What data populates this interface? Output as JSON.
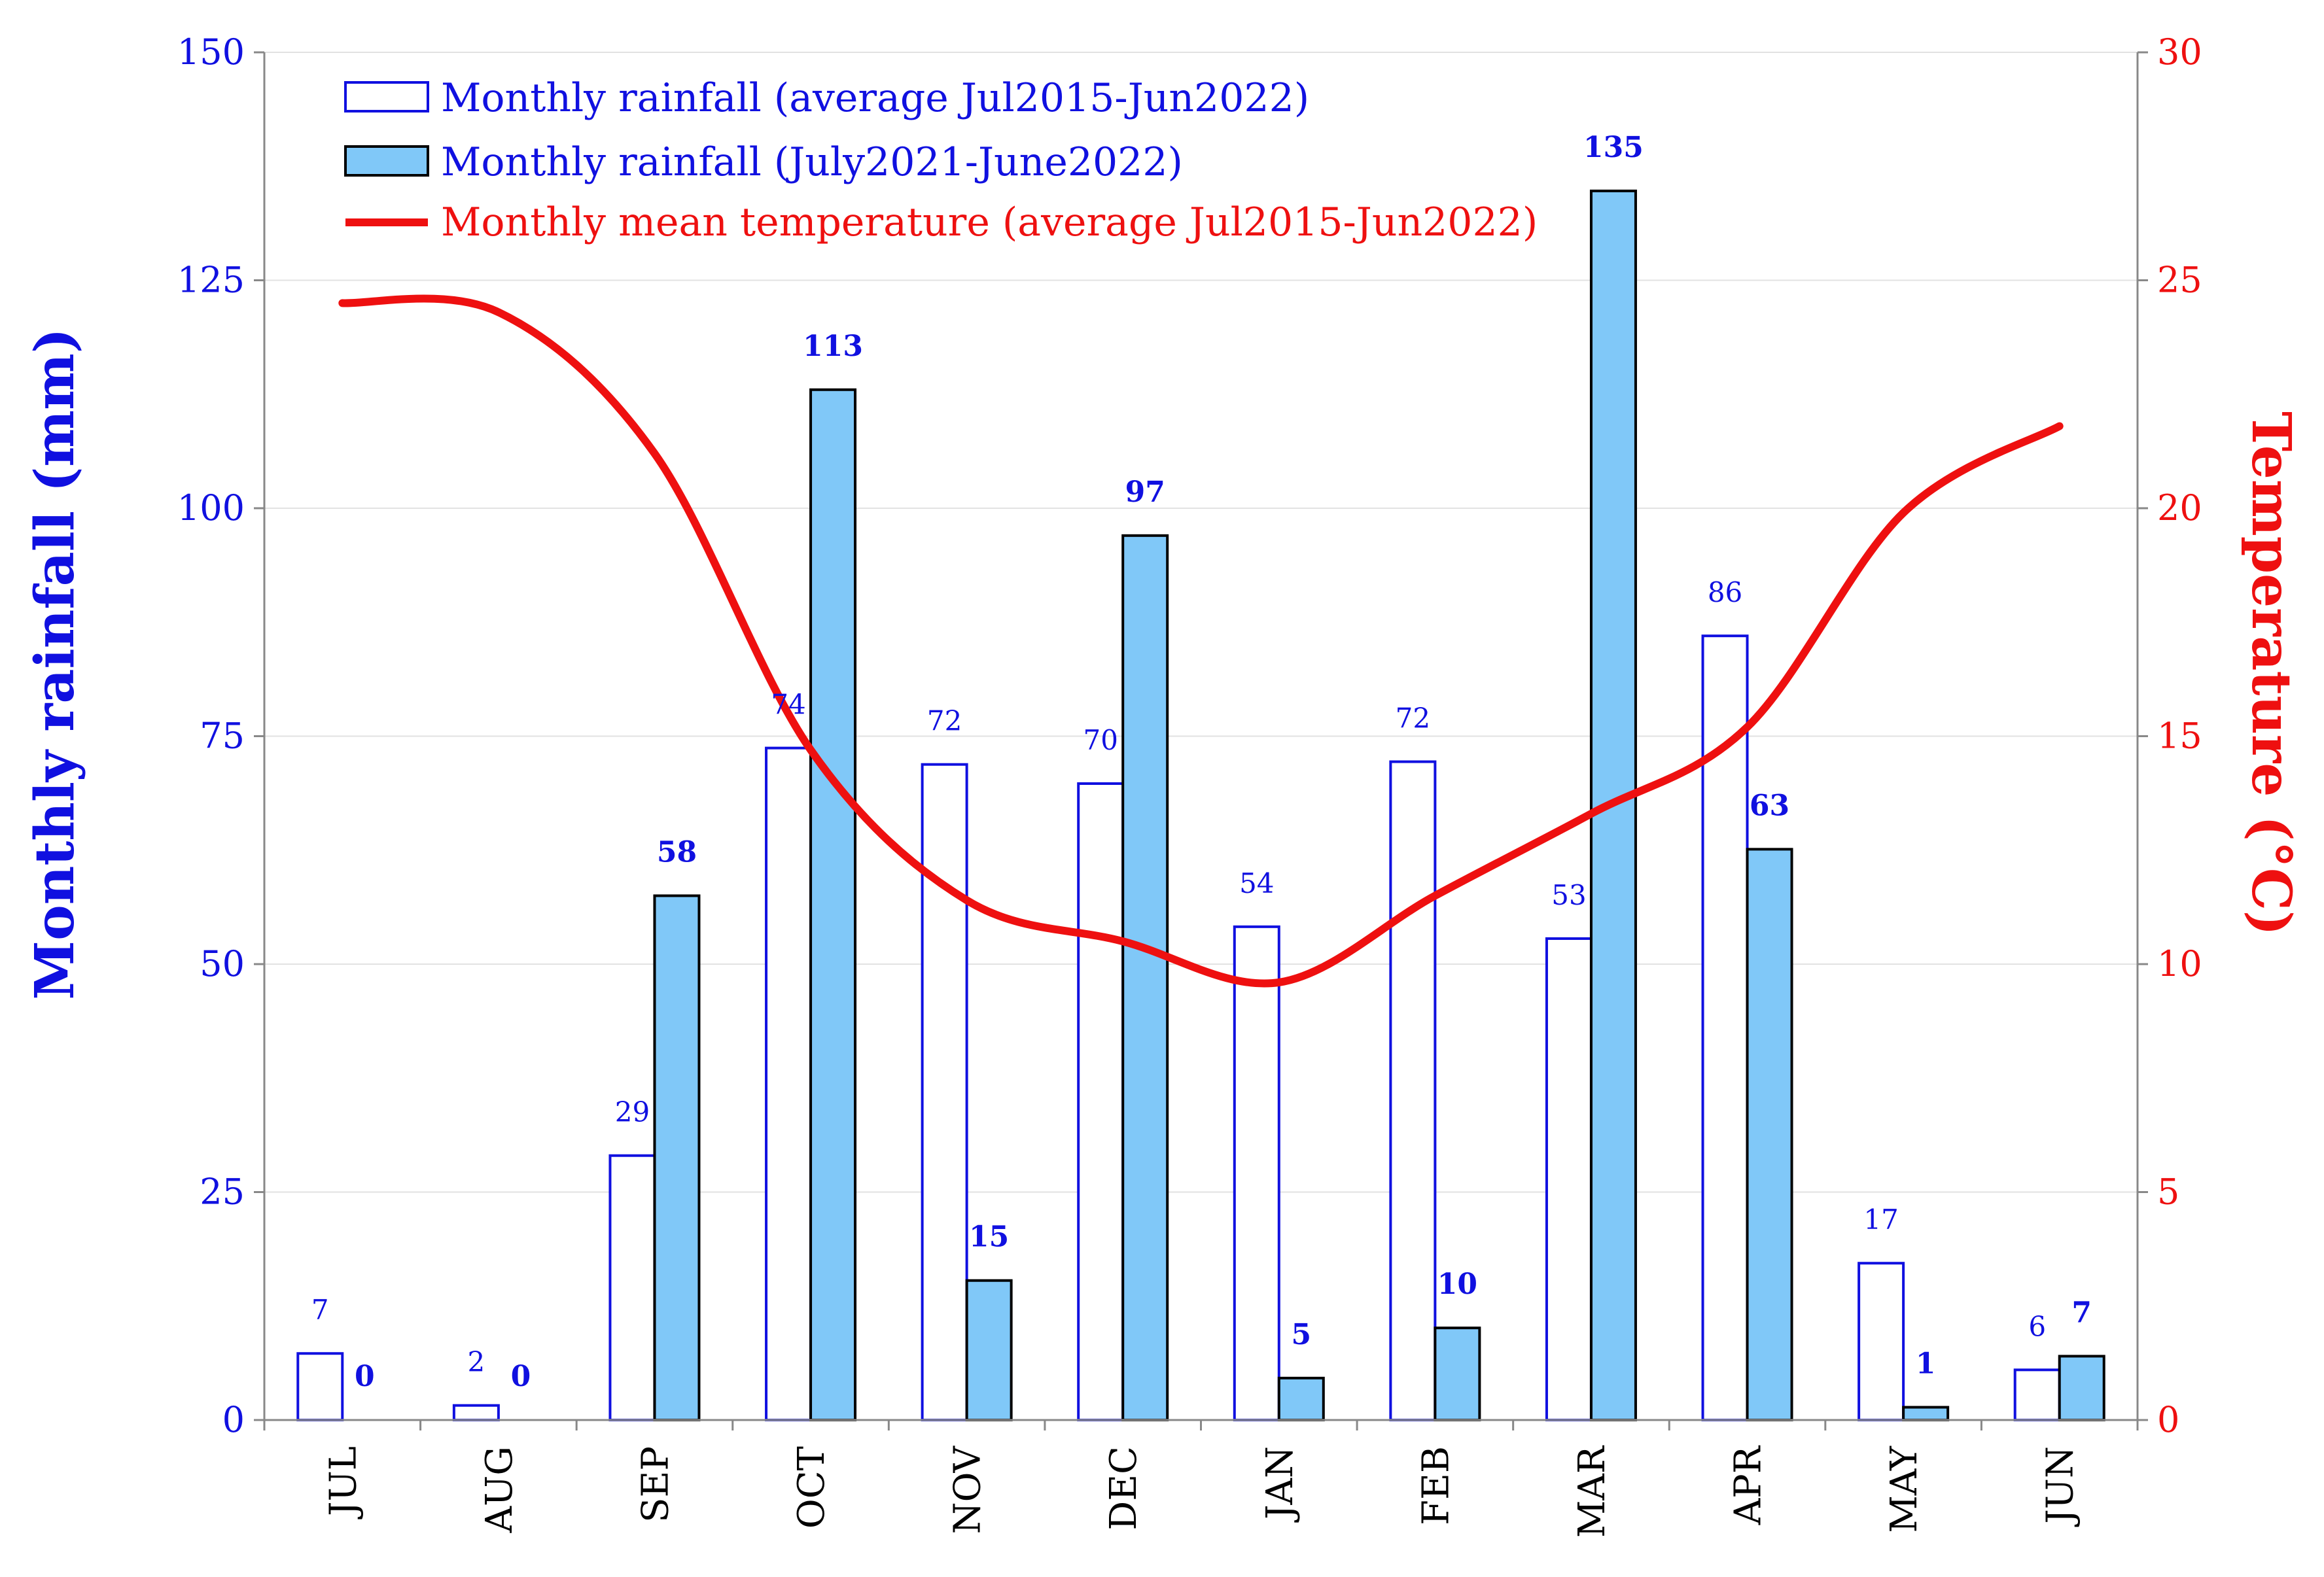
{
  "chart_data": {
    "type": "bar",
    "title": "",
    "categories": [
      "JUL",
      "AUG",
      "SEP",
      "OCT",
      "NOV",
      "DEC",
      "JAN",
      "FEB",
      "MAR",
      "APR",
      "MAY",
      "JUN"
    ],
    "series": [
      {
        "name": "Monthly rainfall (average Jul2015-Jun2022)",
        "type": "bar",
        "axis": "left",
        "values": [
          7.3,
          1.6,
          29,
          73.7,
          71.9,
          69.8,
          54.1,
          72.2,
          52.8,
          86,
          17.2,
          5.5
        ],
        "labels": [
          "7",
          "2",
          "29",
          "74",
          "72",
          "70",
          "54",
          "72",
          "53",
          "86",
          "17",
          "6"
        ],
        "color": "#ffffff",
        "edge": "#1010e0"
      },
      {
        "name": "Monthly rainfall (July2021-June2022)",
        "type": "bar",
        "axis": "left",
        "values": [
          0,
          0,
          57.5,
          113,
          15.3,
          97,
          4.6,
          10.1,
          134.8,
          62.6,
          1.4,
          7
        ],
        "labels": [
          "0",
          "0",
          "58",
          "113",
          "15",
          "97",
          "5",
          "10",
          "135",
          "63",
          "1",
          "7"
        ],
        "color": "#80c8f8",
        "edge": "#000000"
      },
      {
        "name": "Monthly mean temperature (average Jul2015-Jun2022)",
        "type": "line",
        "axis": "right",
        "values": [
          24.5,
          24.3,
          21.2,
          14.7,
          11.4,
          10.5,
          9.6,
          11.5,
          13.3,
          15.2,
          19.9,
          21.8
        ],
        "color": "#ee1010"
      }
    ],
    "ylabel": "Monthly rainfall (mm)",
    "ylim": [
      0,
      150
    ],
    "yticks": [
      "0",
      "25",
      "50",
      "75",
      "100",
      "125",
      "150"
    ],
    "y2label": "Temperature (°C)",
    "y2lim": [
      0,
      30
    ],
    "y2ticks": [
      "0",
      "5",
      "10",
      "15",
      "20",
      "25",
      "30"
    ],
    "legend_position": "top-left"
  }
}
